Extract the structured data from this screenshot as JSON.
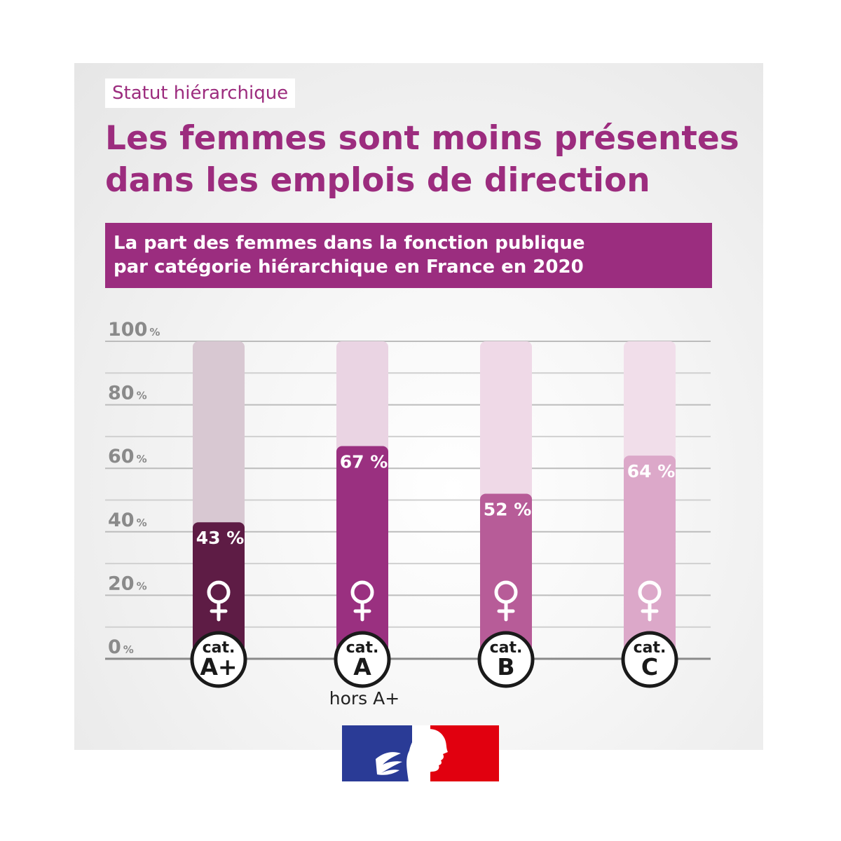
{
  "header": {
    "tag": "Statut hiérarchique",
    "title_lines": [
      "Les femmes sont moins présentes",
      "dans les emplois de direction"
    ],
    "subtitle_lines": [
      "La part des femmes dans la fonction publique",
      "par catégorie hiérarchique en France en 2020"
    ]
  },
  "chart_data": {
    "type": "bar",
    "title": "La part des femmes dans la fonction publique par catégorie hiérarchique en France en 2020",
    "ylim": [
      0,
      100
    ],
    "yticks": [
      {
        "value": 0,
        "label": "0",
        "unit": "%"
      },
      {
        "value": 20,
        "label": "20",
        "unit": "%"
      },
      {
        "value": 40,
        "label": "40",
        "unit": "%"
      },
      {
        "value": 60,
        "label": "60",
        "unit": "%"
      },
      {
        "value": 80,
        "label": "80",
        "unit": "%"
      },
      {
        "value": 100,
        "label": "100",
        "unit": "%"
      }
    ],
    "grid": true,
    "categories": [
      {
        "badge_top": "cat.",
        "badge_bottom": "A+",
        "sublabel": ""
      },
      {
        "badge_top": "cat.",
        "badge_bottom": "A",
        "sublabel": "hors A+"
      },
      {
        "badge_top": "cat.",
        "badge_bottom": "B",
        "sublabel": ""
      },
      {
        "badge_top": "cat.",
        "badge_bottom": "C",
        "sublabel": ""
      }
    ],
    "values": [
      43,
      67,
      52,
      64
    ],
    "value_labels": [
      "43 %",
      "67 %",
      "52 %",
      "64 %"
    ],
    "bar_colors": [
      "#5e1c45",
      "#9a3080",
      "#b75c98",
      "#dca8c9"
    ],
    "track_colors": [
      "#d8c8d2",
      "#ead4e3",
      "#efd9e7",
      "#f1deea"
    ],
    "icon": "female-symbol-icon"
  },
  "footer": {
    "logo": "marianne-logo",
    "colors": {
      "blue": "#2a3b96",
      "white": "#ffffff",
      "red": "#e1000f"
    }
  }
}
